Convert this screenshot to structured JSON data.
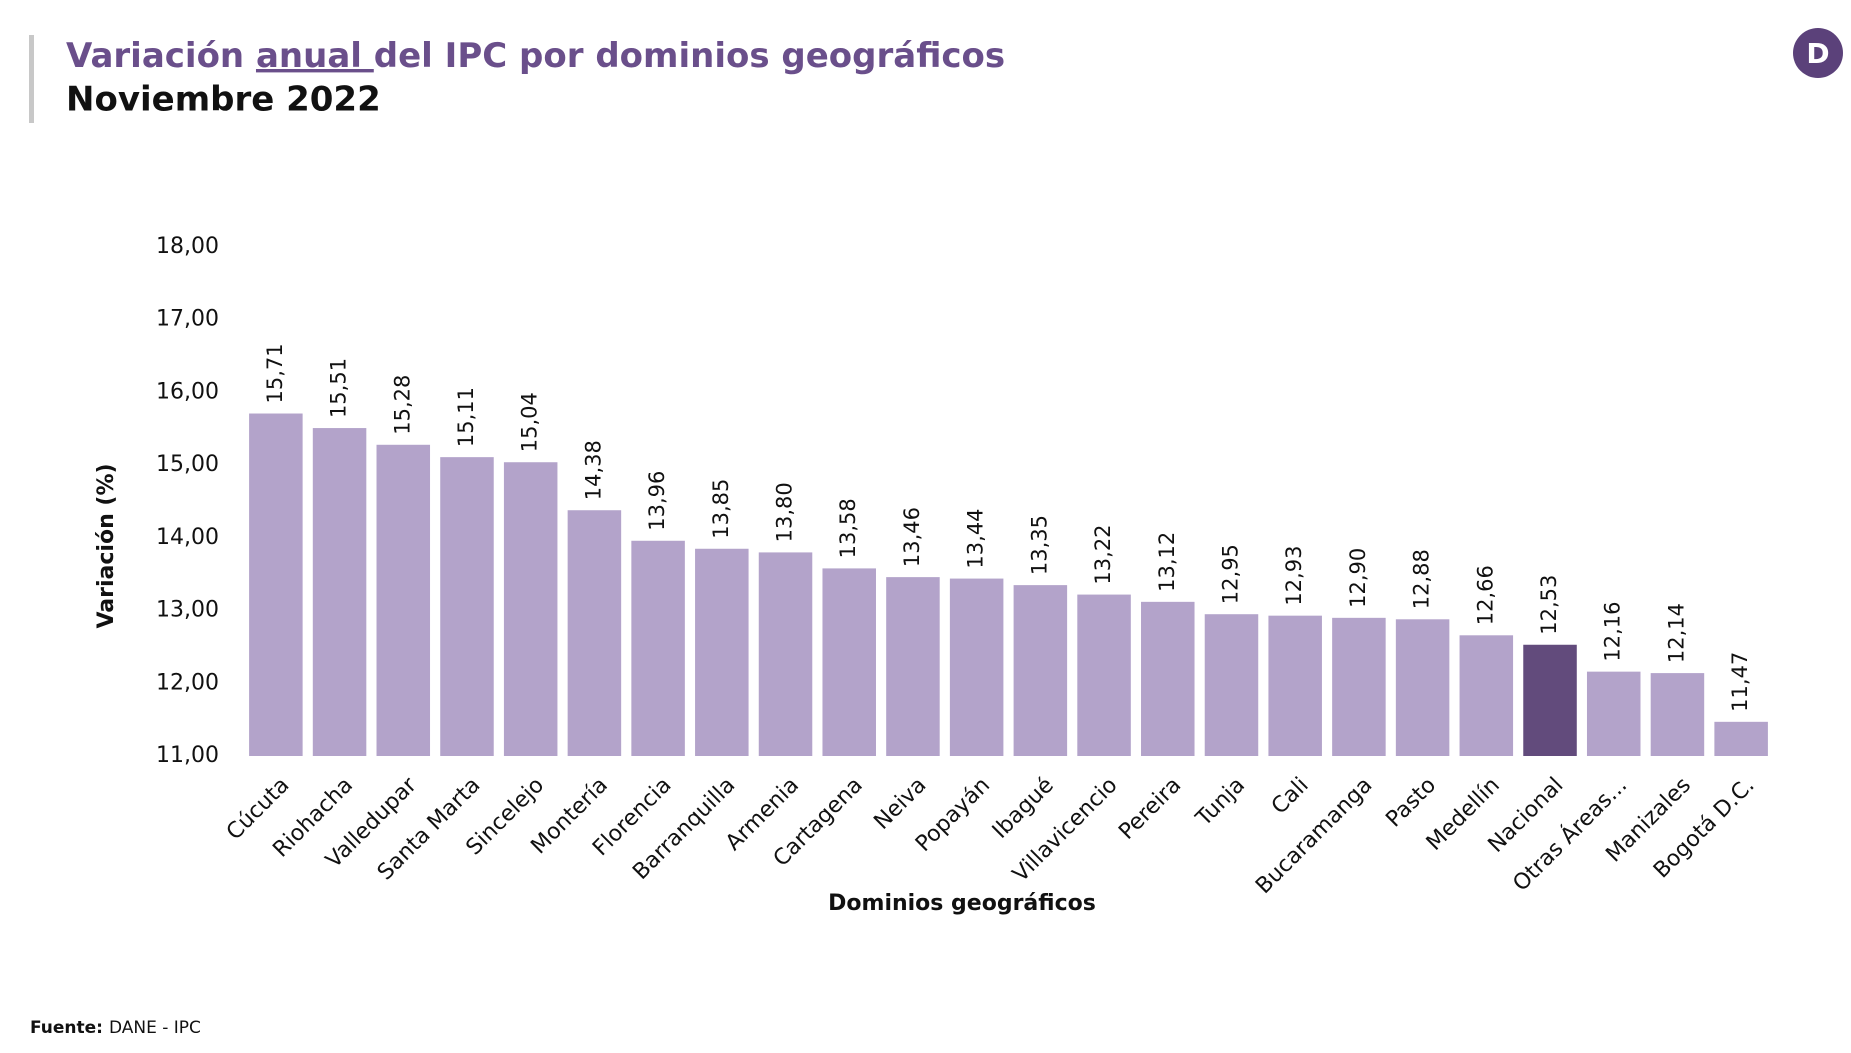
{
  "chart_data": {
    "type": "bar",
    "title": [
      "Variación ",
      "anual ",
      "del IPC por dominios geográficos"
    ],
    "subtitle": "Noviembre 2022",
    "logo": "D",
    "y_label": "Variación (%)",
    "x_label": "Dominios geográficos",
    "source": [
      "Fuente:",
      "DANE - IPC"
    ],
    "categories": [
      "Cúcuta",
      "Riohacha",
      "Valledupar",
      "Santa Marta",
      "Sincelejo",
      "Montería",
      "Florencia",
      "Barranquilla",
      "Armenia",
      "Cartagena",
      "Neiva",
      "Popayán",
      "Ibagué",
      "Villavicencio",
      "Pereira",
      "Tunja",
      "Cali",
      "Bucaramanga",
      "Pasto",
      "Medellín",
      "Nacional",
      "Otras Áreas...",
      "Manizales",
      "Bogotá D.C."
    ],
    "values": [
      15.71,
      15.51,
      15.28,
      15.11,
      15.04,
      14.38,
      13.96,
      13.85,
      13.8,
      13.58,
      13.46,
      13.44,
      13.35,
      13.22,
      13.12,
      12.95,
      12.93,
      12.9,
      12.88,
      12.66,
      12.53,
      12.16,
      12.14,
      11.47
    ],
    "value_labels": [
      "15,71",
      "15,51",
      "15,28",
      "15,11",
      "15,04",
      "14,38",
      "13,96",
      "13,85",
      "13,80",
      "13,58",
      "13,46",
      "13,44",
      "13,35",
      "13,22",
      "13,12",
      "12,95",
      "12,93",
      "12,90",
      "12,88",
      "12,66",
      "12,53",
      "12,16",
      "12,14",
      "11,47"
    ],
    "colors": [
      "#b3a3ca",
      "#b3a3ca",
      "#b3a3ca",
      "#b3a3ca",
      "#b3a3ca",
      "#b3a3ca",
      "#b3a3ca",
      "#b3a3ca",
      "#b3a3ca",
      "#b3a3ca",
      "#b3a3ca",
      "#b3a3ca",
      "#b3a3ca",
      "#b3a3ca",
      "#b3a3ca",
      "#b3a3ca",
      "#b3a3ca",
      "#b3a3ca",
      "#b3a3ca",
      "#b3a3ca",
      "#624b7c",
      "#b3a3ca",
      "#b3a3ca",
      "#b3a3ca"
    ],
    "ylim": [
      11,
      18
    ],
    "yticks": [
      {
        "value": 11,
        "label": "11,00"
      },
      {
        "value": 12,
        "label": "12,00"
      },
      {
        "value": 13,
        "label": "13,00"
      },
      {
        "value": 14,
        "label": "14,00"
      },
      {
        "value": 15,
        "label": "15,00"
      },
      {
        "value": 16,
        "label": "16,00"
      },
      {
        "value": 17,
        "label": "17,00"
      },
      {
        "value": 18,
        "label": "18,00"
      }
    ],
    "grid": false
  }
}
